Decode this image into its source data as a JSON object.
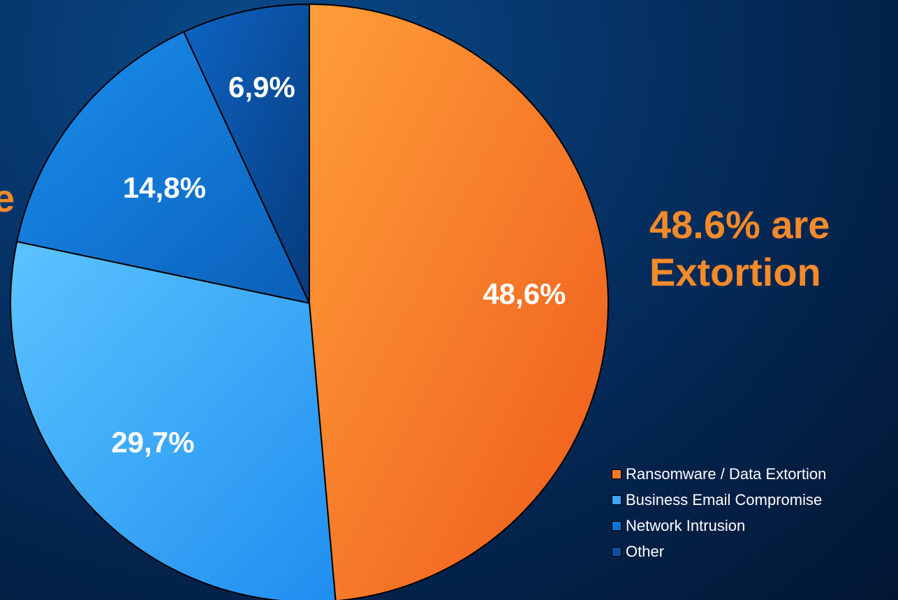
{
  "headline": {
    "line1": "48.6% are",
    "line2": "Extortion"
  },
  "left_fragment": "e",
  "chart_data": {
    "type": "pie",
    "title": "",
    "slices": [
      {
        "name": "Ransomware / Data Extortion",
        "value": 48.6,
        "label": "48,6%",
        "color": "#f57a25",
        "color_light": "#ff9e3a",
        "color_dark": "#ee5a1a"
      },
      {
        "name": "Business Email Compromise",
        "value": 29.7,
        "label": "29,7%",
        "color": "#3aa8f5",
        "color_light": "#5cc4ff",
        "color_dark": "#1f8ef0"
      },
      {
        "name": "Network Intrusion",
        "value": 14.8,
        "label": "14,8%",
        "color": "#0d73d4",
        "color_light": "#1a8ff0",
        "color_dark": "#0a5fb8"
      },
      {
        "name": "Other",
        "value": 6.9,
        "label": "6,9%",
        "color": "#0a4fa0",
        "color_light": "#0d64c4",
        "color_dark": "#073a7a"
      }
    ],
    "start_angle_deg": 0,
    "direction": "clockwise",
    "legend_position": "bottom-right"
  }
}
